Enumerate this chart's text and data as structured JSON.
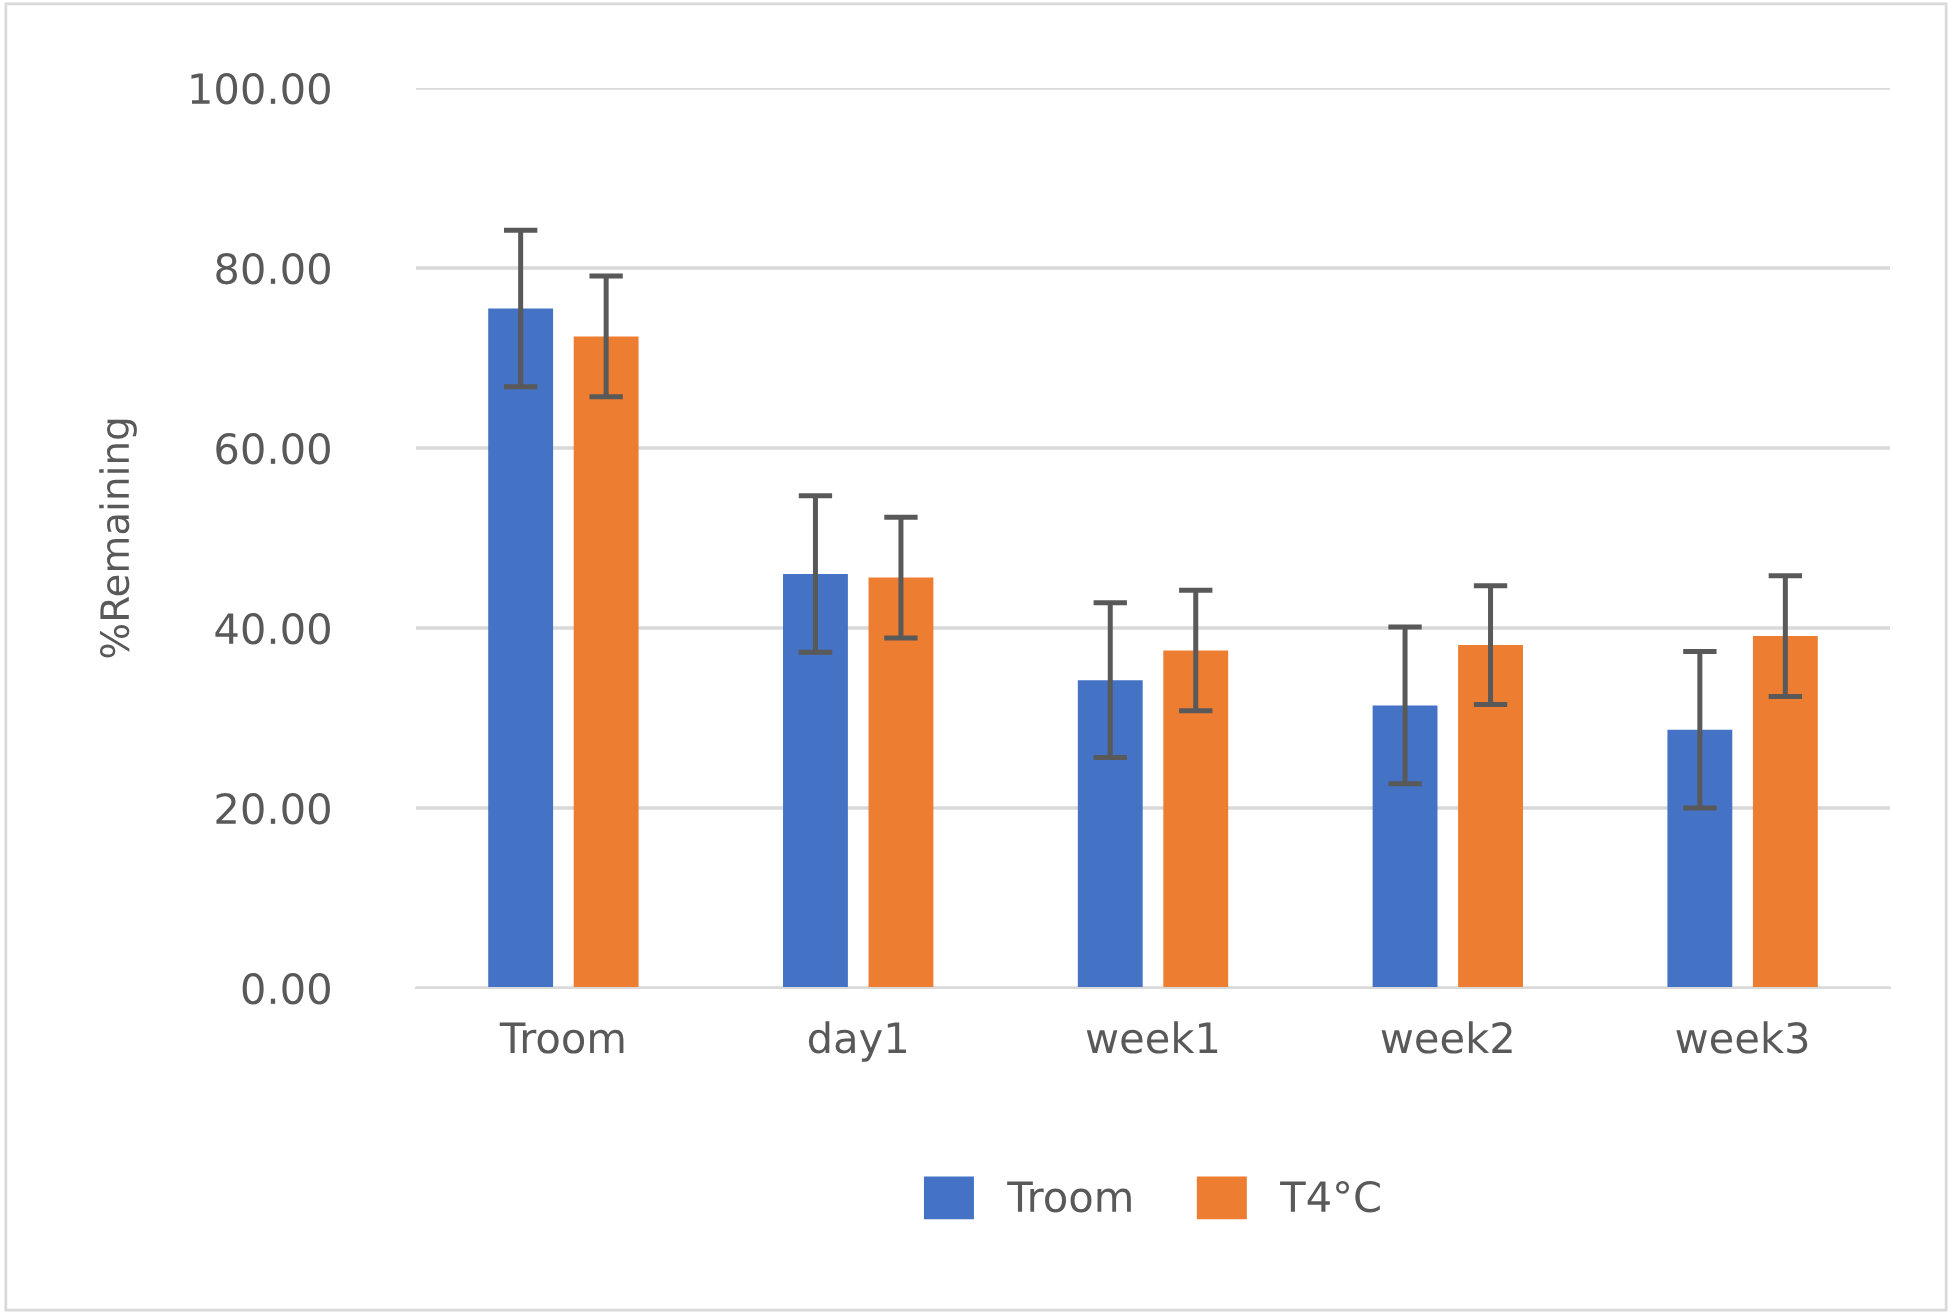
{
  "chart_data": {
    "type": "bar",
    "ylabel": "%Remaining",
    "categories": [
      "Troom",
      "day1",
      "week1",
      "week2",
      "week3"
    ],
    "series": [
      {
        "name": "Troom",
        "color": "#4472c4",
        "values": [
          75.5,
          46.0,
          34.2,
          31.4,
          28.7
        ],
        "errors": [
          8.7,
          8.7,
          8.6,
          8.7,
          8.7
        ]
      },
      {
        "name": "T4°C",
        "color": "#ed7d31",
        "values": [
          72.4,
          45.6,
          37.5,
          38.1,
          39.1
        ],
        "errors": [
          6.7,
          6.7,
          6.7,
          6.6,
          6.7
        ]
      }
    ],
    "ylim": [
      0,
      100
    ],
    "yticks": [
      {
        "value": 0,
        "label": "0.00"
      },
      {
        "value": 20,
        "label": "20.00"
      },
      {
        "value": 40,
        "label": "40.00"
      },
      {
        "value": 60,
        "label": "60.00"
      },
      {
        "value": 80,
        "label": "80.00"
      },
      {
        "value": 100,
        "label": "100.00"
      }
    ],
    "grid": "y",
    "legend": "bottom"
  }
}
